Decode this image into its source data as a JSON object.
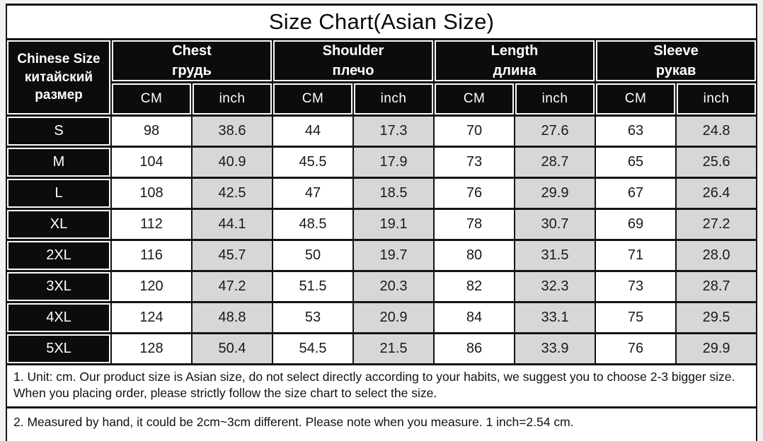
{
  "chart_data": {
    "type": "table",
    "title": "Size Chart(Asian Size)",
    "size_header": {
      "en": "Chinese Size",
      "ru": "китайский размер"
    },
    "column_groups": [
      {
        "en": "Chest",
        "ru": "грудь"
      },
      {
        "en": "Shoulder",
        "ru": "плечо"
      },
      {
        "en": "Length",
        "ru": "длина"
      },
      {
        "en": "Sleeve",
        "ru": "рукав"
      }
    ],
    "unit_labels": [
      "CM",
      "inch"
    ],
    "rows": [
      {
        "size": "S",
        "values": [
          "98",
          "38.6",
          "44",
          "17.3",
          "70",
          "27.6",
          "63",
          "24.8"
        ]
      },
      {
        "size": "M",
        "values": [
          "104",
          "40.9",
          "45.5",
          "17.9",
          "73",
          "28.7",
          "65",
          "25.6"
        ]
      },
      {
        "size": "L",
        "values": [
          "108",
          "42.5",
          "47",
          "18.5",
          "76",
          "29.9",
          "67",
          "26.4"
        ]
      },
      {
        "size": "XL",
        "values": [
          "112",
          "44.1",
          "48.5",
          "19.1",
          "78",
          "30.7",
          "69",
          "27.2"
        ]
      },
      {
        "size": "2XL",
        "values": [
          "116",
          "45.7",
          "50",
          "19.7",
          "80",
          "31.5",
          "71",
          "28.0"
        ]
      },
      {
        "size": "3XL",
        "values": [
          "120",
          "47.2",
          "51.5",
          "20.3",
          "82",
          "32.3",
          "73",
          "28.7"
        ]
      },
      {
        "size": "4XL",
        "values": [
          "124",
          "48.8",
          "53",
          "20.9",
          "84",
          "33.1",
          "75",
          "29.5"
        ]
      },
      {
        "size": "5XL",
        "values": [
          "128",
          "50.4",
          "54.5",
          "21.5",
          "86",
          "33.9",
          "76",
          "29.9"
        ]
      }
    ]
  },
  "notes": [
    "1. Unit: cm. Our product size is Asian size, do not select directly according to your habits, we suggest you to choose 2-3 bigger size. When you placing order, please strictly follow the size chart to select the size.",
    "2. Measured by hand, it could be 2cm~3cm different. Please note when you measure. 1 inch=2.54 cm."
  ],
  "colors": {
    "header_bg": "#0c0c0c",
    "header_text": "#ffffff",
    "cell_bg": "#ffffff",
    "alt_cell_bg": "#d7d7d7",
    "grid": "#141414",
    "title_text": "#0a0a0a",
    "page_bg": "#f2f2f2"
  }
}
